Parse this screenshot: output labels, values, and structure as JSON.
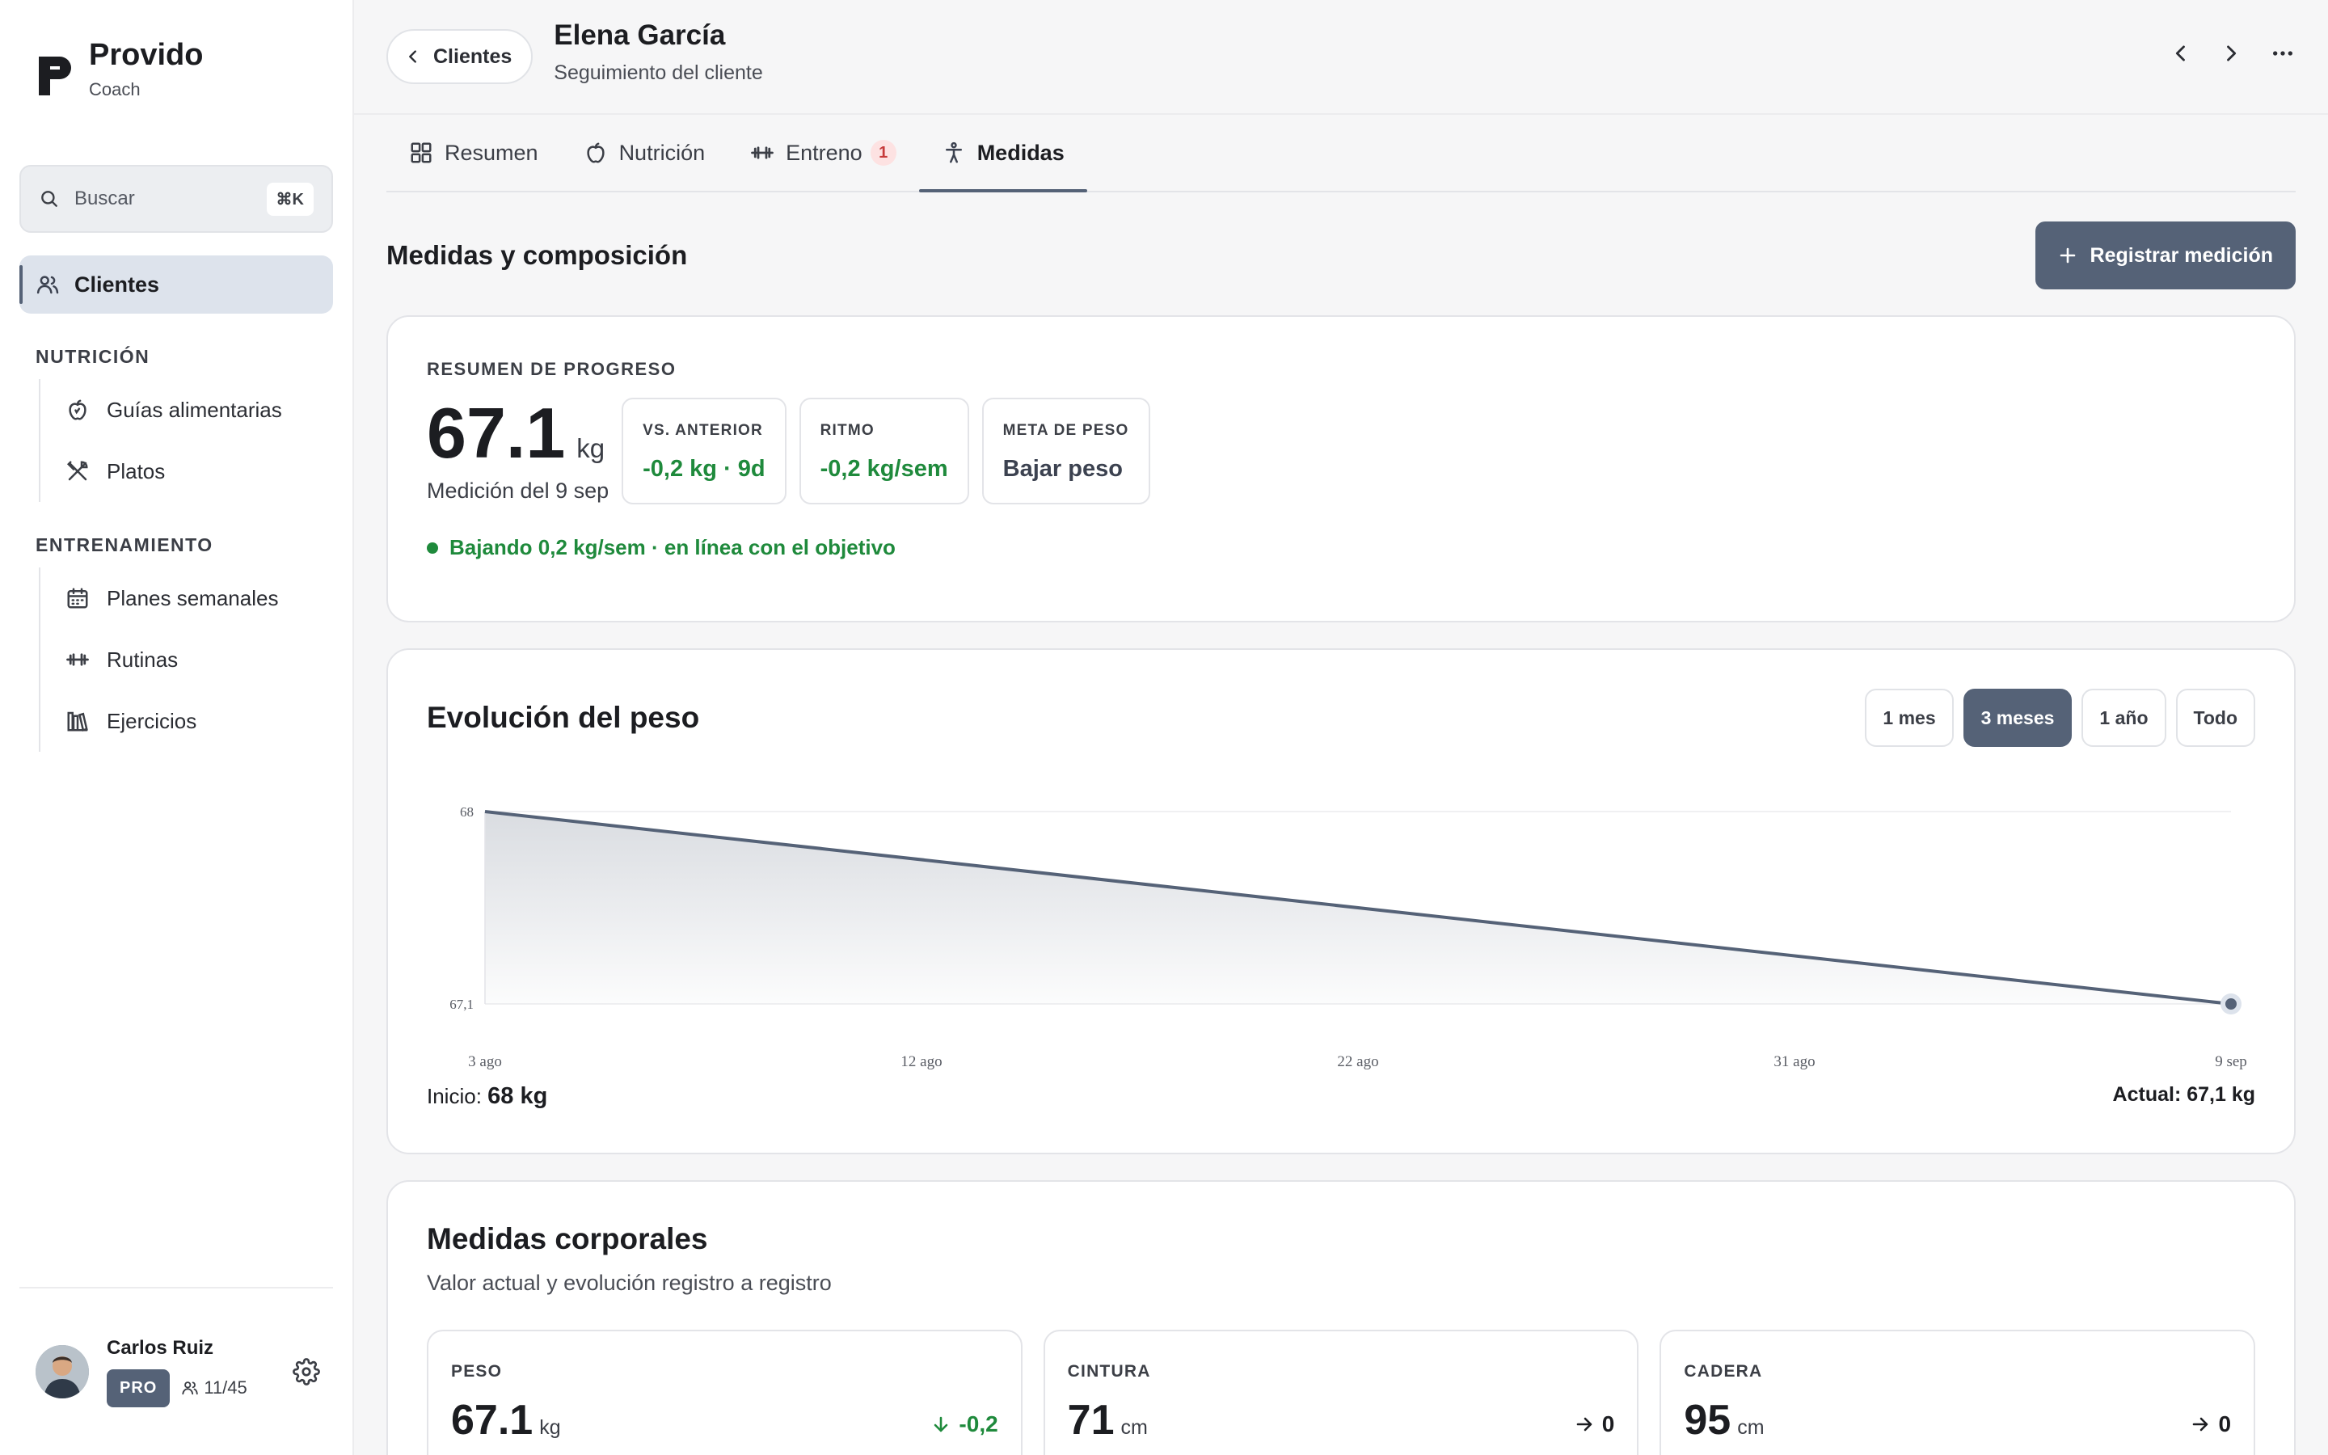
{
  "brand": {
    "name": "Provido",
    "subtitle": "Coach"
  },
  "search": {
    "placeholder": "Buscar",
    "shortcut": "⌘K"
  },
  "sidebar": {
    "active_item": {
      "label": "Clientes",
      "icon": "users-icon"
    },
    "sections": [
      {
        "title": "NUTRICIÓN",
        "items": [
          {
            "label": "Guías alimentarias",
            "icon": "apple-icon"
          },
          {
            "label": "Platos",
            "icon": "utensils-icon"
          }
        ]
      },
      {
        "title": "ENTRENAMIENTO",
        "items": [
          {
            "label": "Planes semanales",
            "icon": "calendar-icon"
          },
          {
            "label": "Rutinas",
            "icon": "dumbbell-icon"
          },
          {
            "label": "Ejercicios",
            "icon": "library-icon"
          }
        ]
      }
    ]
  },
  "user": {
    "name": "Carlos Ruiz",
    "plan": "PRO",
    "clients": "11/45"
  },
  "header": {
    "back_label": "Clientes",
    "client_name": "Elena García",
    "client_subtitle": "Seguimiento del cliente"
  },
  "tabs": [
    {
      "label": "Resumen",
      "icon": "grid-icon",
      "active": false
    },
    {
      "label": "Nutrición",
      "icon": "apple-icon",
      "active": false
    },
    {
      "label": "Entreno",
      "icon": "dumbbell-icon",
      "active": false,
      "badge": "1"
    },
    {
      "label": "Medidas",
      "icon": "person-icon",
      "active": true
    }
  ],
  "section": {
    "title": "Medidas y composición",
    "action": "Registrar medición"
  },
  "progress": {
    "overline": "RESUMEN DE PROGRESO",
    "weight": "67.1",
    "unit": "kg",
    "caption": "Medición del 9 sep",
    "stats": [
      {
        "label": "VS. ANTERIOR",
        "value": "-0,2 kg · 9d",
        "tone": "green"
      },
      {
        "label": "RITMO",
        "value": "-0,2 kg/sem",
        "tone": "green"
      },
      {
        "label": "META DE PESO",
        "value": "Bajar peso",
        "tone": "slate"
      }
    ],
    "status": "Bajando 0,2 kg/sem · en línea con el objetivo"
  },
  "weight_chart": {
    "title": "Evolución del peso",
    "ranges": [
      "1 mes",
      "3 meses",
      "1 año",
      "Todo"
    ],
    "active_range": "3 meses",
    "start_label": "Inicio:",
    "start_value": "68 kg",
    "current_label": "Actual: 67,1 kg"
  },
  "chart_data": {
    "type": "area",
    "title": "Evolución del peso",
    "x": [
      "3 ago",
      "9 sep"
    ],
    "values": [
      68,
      67.1
    ],
    "x_ticks": [
      "3 ago",
      "12 ago",
      "22 ago",
      "31 ago",
      "9 sep"
    ],
    "y_ticks": [
      "68",
      "67,1"
    ],
    "ylim": [
      67.1,
      68
    ],
    "grid": true,
    "line_color": "#556277"
  },
  "body": {
    "title": "Medidas corporales",
    "subtitle": "Valor actual y evolución registro a registro",
    "metrics": [
      {
        "label": "PESO",
        "value": "67.1",
        "unit": "kg",
        "delta": "-0,2",
        "trend": "down",
        "color": "#1f8a3c"
      },
      {
        "label": "CINTURA",
        "value": "71",
        "unit": "cm",
        "delta": "0",
        "trend": "flat",
        "color": "#1c1d21"
      },
      {
        "label": "CADERA",
        "value": "95",
        "unit": "cm",
        "delta": "0",
        "trend": "flat",
        "color": "#1c1d21"
      }
    ]
  },
  "colors": {
    "accent": "#556277",
    "positive": "#1f8a3c",
    "badge": "#c63b3b"
  }
}
